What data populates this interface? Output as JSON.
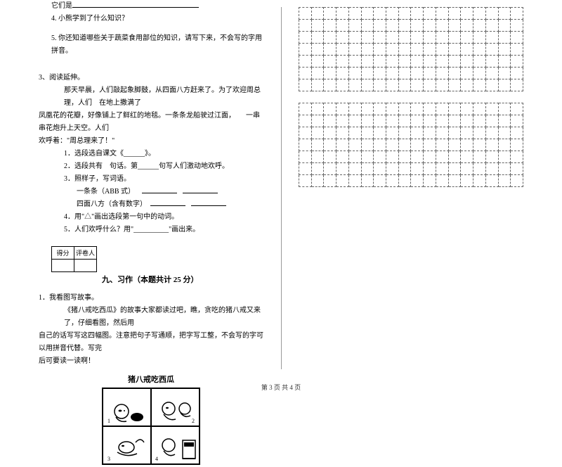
{
  "colors": {
    "text": "#000000",
    "bg": "#ffffff",
    "grid_border": "#666666",
    "divider": "#999999"
  },
  "left": {
    "q_tamen": "它们是",
    "q4": "4. 小熊学到了什么知识？",
    "q5": "5. 你还知道哪些关于蔬菜食用部位的知识，请写下来，不会写的字用拼音。",
    "sec3_title": "3、阅读延伸。",
    "passage_l1": "那天早晨，人们敲起象脚鼓，从四面八方赶来了。为了欢迎周总理，人们　在地上撒满了",
    "passage_l2": "凤凰花的花瓣，好像铺上了鲜红的地毯。一条条龙船驶过江面，　　一串串花炮升上天空。人们",
    "passage_l3": "欢呼着：\"周总理来了！\"",
    "p_q1": "1．选段选自课文《______》。",
    "p_q2": "2．选段共有　句话。第______句写人们激动地欢呼。",
    "p_q3": "3．照样子，写词语。",
    "p_q3a": "一条条（ABB 式）",
    "p_q3b": "四面八方（含有数字）",
    "p_q4": "4．用\"△\"画出选段第一句中的动词。",
    "p_q5": "5．人们欢呼什么？用\"__________\"画出来。",
    "score_label_1": "得分",
    "score_label_2": "评卷人",
    "section9": "九、习作（本题共计 25 分）",
    "w1": "1．我看图写故事。",
    "w2": "《猪八戒吃西瓜》的故事大家都读过吧，瞧，贪吃的猪八戒又来了，仔细看图，然后用",
    "w3": "自己的话写写这四幅图。注意把句子写通顺，把字写工整，不会写的字可以用拼音代替。写完",
    "w4": "后可要读一读啊！",
    "illus_title": "猪八戒吃西瓜"
  },
  "grid": {
    "cols": 18,
    "block1_rows": 7,
    "block2_rows": 7,
    "cell_border": "#666666",
    "dash": true
  },
  "footer": "第 3 页 共 4 页"
}
